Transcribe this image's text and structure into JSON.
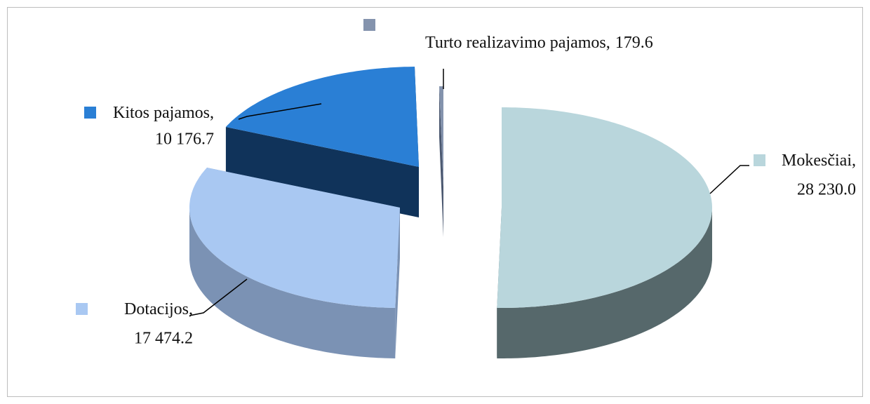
{
  "chart_data": {
    "type": "pie",
    "view": "3d-exploded",
    "categories": [
      "Mokesčiai",
      "Dotacijos",
      "Kitos pajamos",
      "Turto realizavimo pajamos"
    ],
    "values": [
      28230.0,
      17474.2,
      10176.7,
      179.6
    ],
    "value_labels": [
      "28 230.0",
      "17 474.2",
      "10 176.7",
      "179.6"
    ],
    "label_separator": ",",
    "colors": [
      "#b9d6dc",
      "#a9c8f2",
      "#2a7fd5",
      "#8493ad"
    ],
    "side_colors": [
      "#56686b",
      "#7b92b4",
      "#10335a",
      "#4b5870"
    ]
  }
}
